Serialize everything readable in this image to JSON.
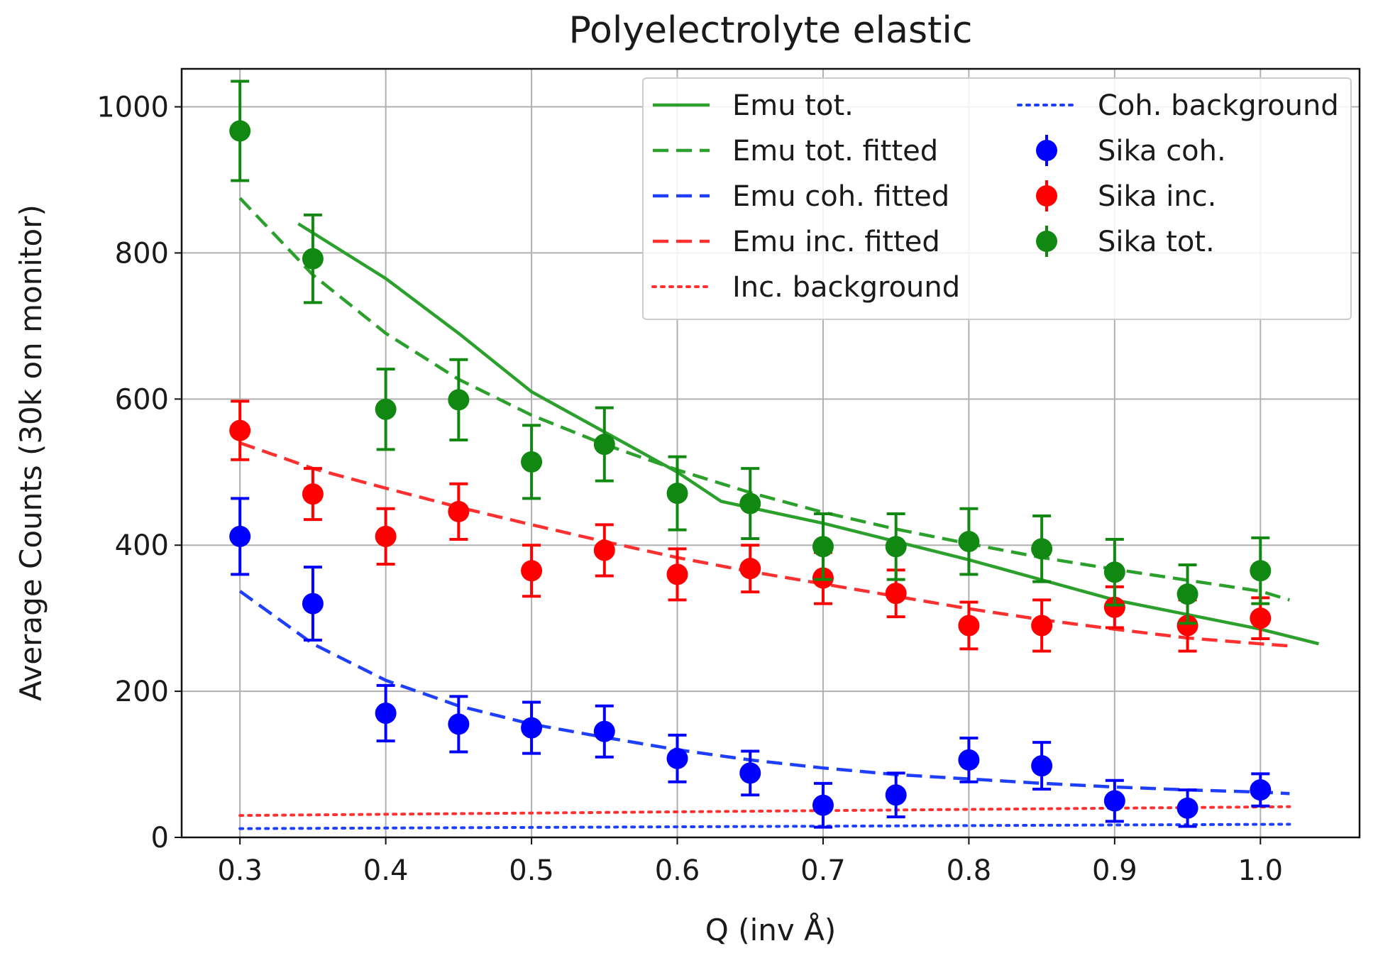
{
  "chart_data": {
    "type": "scatter",
    "title": "Polyelectrolyte elastic",
    "xlabel": "Q (inv Å)",
    "ylabel": "Average Counts (30k on monitor)",
    "xlim": [
      0.26,
      1.068
    ],
    "ylim": [
      0,
      1052
    ],
    "x_ticks": [
      0.3,
      0.4,
      0.5,
      0.6,
      0.7,
      0.8,
      0.9,
      1.0
    ],
    "x_tick_labels": [
      "0.3",
      "0.4",
      "0.5",
      "0.6",
      "0.7",
      "0.8",
      "0.9",
      "1.0"
    ],
    "y_ticks": [
      0,
      200,
      400,
      600,
      800,
      1000
    ],
    "y_tick_labels": [
      "0",
      "200",
      "400",
      "600",
      "800",
      "1000"
    ],
    "grid": true,
    "legend_position": "top-right",
    "lines": [
      {
        "name": "Emu tot.",
        "color": "#2ca02c",
        "style": "solid",
        "x": [
          0.34,
          0.4,
          0.45,
          0.5,
          0.55,
          0.6,
          0.63,
          0.7,
          0.8,
          0.9,
          1.0,
          1.04
        ],
        "y": [
          840,
          765,
          690,
          610,
          555,
          500,
          460,
          430,
          380,
          325,
          285,
          265
        ]
      },
      {
        "name": "Emu tot. fitted",
        "color": "#2ca02c",
        "style": "dashed",
        "x": [
          0.3,
          0.35,
          0.4,
          0.45,
          0.5,
          0.55,
          0.6,
          0.65,
          0.7,
          0.75,
          0.8,
          0.85,
          0.9,
          0.95,
          1.0,
          1.02
        ],
        "y": [
          875,
          770,
          690,
          627,
          578,
          538,
          503,
          472,
          445,
          422,
          402,
          383,
          367,
          352,
          337,
          325
        ]
      },
      {
        "name": "Emu coh. fitted",
        "color": "#1f3fff",
        "style": "dashed",
        "x": [
          0.3,
          0.35,
          0.4,
          0.45,
          0.5,
          0.55,
          0.6,
          0.65,
          0.7,
          0.75,
          0.8,
          0.85,
          0.9,
          0.95,
          1.0,
          1.02
        ],
        "y": [
          337,
          265,
          215,
          180,
          155,
          137,
          120,
          106,
          95,
          86,
          80,
          74,
          69,
          65,
          62,
          60
        ]
      },
      {
        "name": "Emu inc. fitted",
        "color": "#ff3030",
        "style": "dashed",
        "x": [
          0.3,
          0.35,
          0.4,
          0.45,
          0.5,
          0.55,
          0.6,
          0.65,
          0.7,
          0.75,
          0.8,
          0.85,
          0.9,
          0.95,
          1.0,
          1.02
        ],
        "y": [
          540,
          505,
          478,
          452,
          428,
          405,
          383,
          364,
          347,
          330,
          313,
          298,
          285,
          273,
          265,
          262
        ]
      },
      {
        "name": "Inc. background",
        "color": "#ff3030",
        "style": "dotted",
        "x": [
          0.3,
          1.02
        ],
        "y": [
          30,
          42
        ]
      },
      {
        "name": "Coh. background",
        "color": "#1f3fff",
        "style": "dotted",
        "x": [
          0.3,
          1.02
        ],
        "y": [
          12,
          18
        ]
      }
    ],
    "series": [
      {
        "name": "Sika coh.",
        "color": "#0000ff",
        "x": [
          0.3,
          0.35,
          0.4,
          0.45,
          0.5,
          0.55,
          0.6,
          0.65,
          0.7,
          0.75,
          0.8,
          0.85,
          0.9,
          0.95,
          1.0
        ],
        "y": [
          412,
          320,
          170,
          155,
          150,
          145,
          108,
          88,
          44,
          58,
          106,
          98,
          50,
          40,
          65
        ],
        "err": [
          52,
          50,
          38,
          38,
          35,
          35,
          32,
          30,
          30,
          30,
          30,
          32,
          28,
          25,
          22
        ]
      },
      {
        "name": "Sika inc.",
        "color": "#ff0000",
        "x": [
          0.3,
          0.35,
          0.4,
          0.45,
          0.5,
          0.55,
          0.6,
          0.65,
          0.7,
          0.75,
          0.8,
          0.85,
          0.9,
          0.95,
          1.0
        ],
        "y": [
          557,
          470,
          412,
          446,
          365,
          393,
          360,
          368,
          355,
          334,
          290,
          290,
          315,
          290,
          300
        ],
        "err": [
          40,
          35,
          38,
          38,
          35,
          35,
          35,
          32,
          35,
          32,
          32,
          35,
          28,
          35,
          28
        ]
      },
      {
        "name": "Sika tot.",
        "color": "#118811",
        "x": [
          0.3,
          0.35,
          0.4,
          0.45,
          0.5,
          0.55,
          0.6,
          0.65,
          0.7,
          0.75,
          0.8,
          0.85,
          0.9,
          0.95,
          1.0
        ],
        "y": [
          967,
          792,
          586,
          599,
          514,
          538,
          471,
          457,
          398,
          398,
          405,
          395,
          363,
          333,
          365
        ],
        "err": [
          68,
          60,
          55,
          55,
          50,
          50,
          50,
          48,
          45,
          45,
          45,
          45,
          45,
          40,
          45
        ]
      }
    ],
    "legend": {
      "left_column": [
        "Emu tot.",
        "Emu tot. fitted",
        "Emu coh. fitted",
        "Emu inc. fitted",
        "Inc. background"
      ],
      "right_column": [
        "Coh. background",
        "Sika coh.",
        "Sika inc.",
        "Sika tot."
      ]
    }
  }
}
